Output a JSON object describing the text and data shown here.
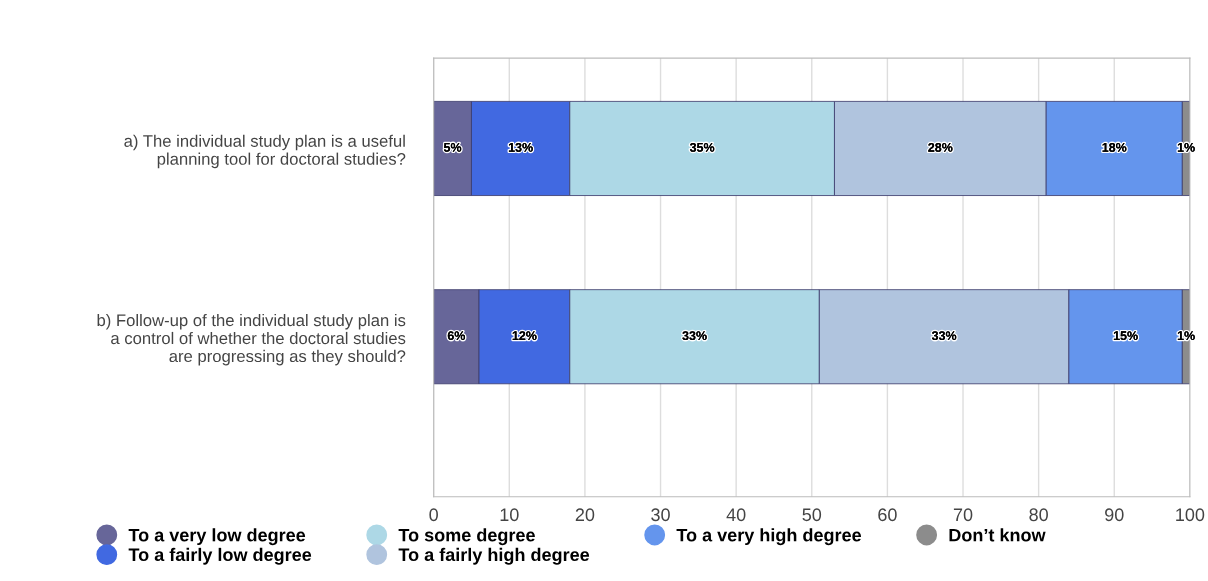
{
  "chart_data": {
    "type": "bar",
    "orientation": "horizontal",
    "stacked": true,
    "categories": [
      "a) The individual study plan is a useful\nplanning tool for doctoral studies?",
      "b) Follow-up of the individual study plan is\na control of whether the doctoral studies\nare progressing as they should?"
    ],
    "series": [
      {
        "name": "To a very low degree",
        "color": "#676699",
        "values": [
          5,
          6
        ],
        "value_labels": [
          "5%",
          "6%"
        ]
      },
      {
        "name": "To a fairly low degree",
        "color": "#4169e1",
        "values": [
          13,
          12
        ],
        "value_labels": [
          "13%",
          "12%"
        ]
      },
      {
        "name": "To some degree",
        "color": "#add8e6",
        "values": [
          35,
          33
        ],
        "value_labels": [
          "35%",
          "33%"
        ]
      },
      {
        "name": "To a fairly high degree",
        "color": "#b0c4de",
        "values": [
          28,
          33
        ],
        "value_labels": [
          "28%",
          "33%"
        ]
      },
      {
        "name": "To a very high degree",
        "color": "#6495ed",
        "values": [
          18,
          15
        ],
        "value_labels": [
          "18%",
          "15%"
        ]
      },
      {
        "name": "Don’t know",
        "color": "#8c8c8c",
        "values": [
          1,
          1
        ],
        "value_labels": [
          "1%",
          "1%"
        ]
      }
    ],
    "xlim": [
      0,
      100
    ],
    "xticks": [
      0,
      10,
      20,
      30,
      40,
      50,
      60,
      70,
      80,
      90,
      100
    ],
    "grid": "x",
    "legend": "bottom",
    "marker": "circle"
  }
}
